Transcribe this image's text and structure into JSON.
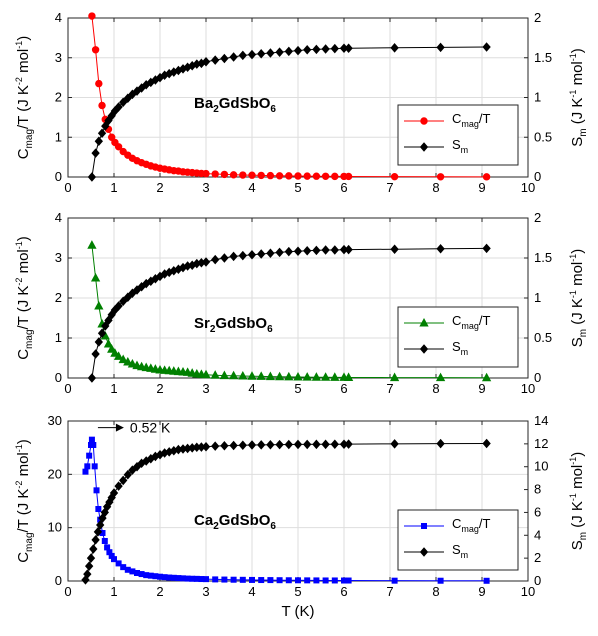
{
  "chart_data": [
    {
      "type": "line",
      "compound": {
        "pre": "Ba",
        "n1": "2",
        "mid": "GdSbO",
        "n2": "6"
      },
      "xlim": [
        0,
        10
      ],
      "xticks": [
        0,
        1,
        2,
        3,
        4,
        5,
        6,
        7,
        8,
        9,
        10
      ],
      "ylim_left": [
        0,
        4
      ],
      "yticks_left": [
        0,
        1,
        2,
        3,
        4
      ],
      "ylim_right": [
        0,
        2
      ],
      "yticks_right": [
        0,
        0.5,
        1,
        1.5,
        2
      ],
      "ylabel_left": {
        "a": "C",
        "b": "mag",
        "c": "/T (J K",
        "d": "-2",
        "e": " mol",
        "f": "-1",
        "g": ")"
      },
      "ylabel_right": {
        "a": "S",
        "b": "m",
        "c": " (J K",
        "d": "-1",
        "e": " mol",
        "f": "-1",
        "g": ")"
      },
      "grid": true,
      "legend_position": "right-middle",
      "series": [
        {
          "name_main": "C",
          "name_sub": "mag",
          "name_tail": "/T",
          "axis": "left",
          "color": "#ff0000",
          "marker": "circle",
          "x": [
            0.52,
            0.6,
            0.67,
            0.74,
            0.81,
            0.88,
            0.95,
            1.02,
            1.1,
            1.2,
            1.3,
            1.4,
            1.5,
            1.6,
            1.7,
            1.8,
            1.9,
            2.0,
            2.1,
            2.2,
            2.3,
            2.4,
            2.5,
            2.6,
            2.7,
            2.8,
            2.9,
            3.0,
            3.2,
            3.4,
            3.6,
            3.8,
            4.0,
            4.2,
            4.4,
            4.6,
            4.8,
            5.0,
            5.2,
            5.4,
            5.6,
            5.8,
            6.0,
            6.1,
            7.1,
            8.1,
            9.1
          ],
          "y": [
            4.05,
            3.2,
            2.35,
            1.8,
            1.45,
            1.2,
            1.0,
            0.87,
            0.76,
            0.64,
            0.55,
            0.47,
            0.41,
            0.36,
            0.32,
            0.28,
            0.25,
            0.22,
            0.2,
            0.18,
            0.16,
            0.15,
            0.13,
            0.12,
            0.11,
            0.1,
            0.09,
            0.085,
            0.075,
            0.065,
            0.055,
            0.05,
            0.045,
            0.04,
            0.035,
            0.03,
            0.028,
            0.025,
            0.022,
            0.02,
            0.018,
            0.016,
            0.015,
            0.014,
            0.008,
            0.005,
            0.004
          ]
        },
        {
          "name_main": "S",
          "name_sub": "m",
          "name_tail": "",
          "axis": "right",
          "color": "#000000",
          "marker": "diamond",
          "x": [
            0.52,
            0.6,
            0.67,
            0.74,
            0.81,
            0.88,
            0.95,
            1.02,
            1.1,
            1.2,
            1.3,
            1.4,
            1.5,
            1.6,
            1.7,
            1.8,
            1.9,
            2.0,
            2.1,
            2.2,
            2.3,
            2.4,
            2.5,
            2.6,
            2.7,
            2.8,
            2.9,
            3.0,
            3.2,
            3.4,
            3.6,
            3.8,
            4.0,
            4.2,
            4.4,
            4.6,
            4.8,
            5.0,
            5.2,
            5.4,
            5.6,
            5.8,
            6.0,
            6.1,
            7.1,
            8.1,
            9.1
          ],
          "y": [
            0.0,
            0.3,
            0.45,
            0.55,
            0.64,
            0.71,
            0.77,
            0.83,
            0.88,
            0.94,
            0.99,
            1.04,
            1.08,
            1.12,
            1.16,
            1.19,
            1.22,
            1.25,
            1.28,
            1.3,
            1.32,
            1.34,
            1.36,
            1.38,
            1.4,
            1.42,
            1.43,
            1.45,
            1.47,
            1.49,
            1.51,
            1.53,
            1.54,
            1.55,
            1.56,
            1.57,
            1.58,
            1.59,
            1.6,
            1.605,
            1.61,
            1.615,
            1.62,
            1.62,
            1.625,
            1.63,
            1.635
          ]
        }
      ]
    },
    {
      "type": "line",
      "compound": {
        "pre": "Sr",
        "n1": "2",
        "mid": "GdSbO",
        "n2": "6"
      },
      "xlim": [
        0,
        10
      ],
      "xticks": [
        0,
        1,
        2,
        3,
        4,
        5,
        6,
        7,
        8,
        9,
        10
      ],
      "ylim_left": [
        0,
        4
      ],
      "yticks_left": [
        0,
        1,
        2,
        3,
        4
      ],
      "ylim_right": [
        0,
        2
      ],
      "yticks_right": [
        0,
        0.5,
        1,
        1.5,
        2
      ],
      "ylabel_left": {
        "a": "C",
        "b": "mag",
        "c": "/T (J K",
        "d": "-2",
        "e": " mol",
        "f": "-1",
        "g": ")"
      },
      "ylabel_right": {
        "a": "S",
        "b": "m",
        "c": " (J K",
        "d": "-1",
        "e": " mol",
        "f": "-1",
        "g": ")"
      },
      "grid": true,
      "legend_position": "bottom-right",
      "series": [
        {
          "name_main": "C",
          "name_sub": "mag",
          "name_tail": "/T",
          "axis": "left",
          "color": "#008000",
          "marker": "triangle",
          "x": [
            0.52,
            0.6,
            0.67,
            0.74,
            0.81,
            0.88,
            0.95,
            1.02,
            1.1,
            1.2,
            1.3,
            1.4,
            1.5,
            1.6,
            1.7,
            1.8,
            1.9,
            2.0,
            2.1,
            2.2,
            2.3,
            2.4,
            2.5,
            2.6,
            2.7,
            2.8,
            2.9,
            3.0,
            3.2,
            3.4,
            3.6,
            3.8,
            4.0,
            4.2,
            4.4,
            4.6,
            4.8,
            5.0,
            5.2,
            5.4,
            5.6,
            5.8,
            6.0,
            6.1,
            7.1,
            8.1,
            9.1
          ],
          "y": [
            3.32,
            2.5,
            1.8,
            1.35,
            1.05,
            0.85,
            0.72,
            0.62,
            0.54,
            0.46,
            0.4,
            0.35,
            0.31,
            0.28,
            0.26,
            0.24,
            0.22,
            0.2,
            0.19,
            0.18,
            0.17,
            0.16,
            0.15,
            0.14,
            0.12,
            0.1,
            0.09,
            0.08,
            0.07,
            0.06,
            0.055,
            0.05,
            0.045,
            0.04,
            0.035,
            0.03,
            0.028,
            0.025,
            0.022,
            0.02,
            0.018,
            0.016,
            0.015,
            0.014,
            0.01,
            0.008,
            0.006
          ]
        },
        {
          "name_main": "S",
          "name_sub": "m",
          "name_tail": "",
          "axis": "right",
          "color": "#000000",
          "marker": "diamond",
          "x": [
            0.52,
            0.6,
            0.67,
            0.74,
            0.81,
            0.88,
            0.95,
            1.02,
            1.1,
            1.2,
            1.3,
            1.4,
            1.5,
            1.6,
            1.7,
            1.8,
            1.9,
            2.0,
            2.1,
            2.2,
            2.3,
            2.4,
            2.5,
            2.6,
            2.7,
            2.8,
            2.9,
            3.0,
            3.2,
            3.4,
            3.6,
            3.8,
            4.0,
            4.2,
            4.4,
            4.6,
            4.8,
            5.0,
            5.2,
            5.4,
            5.6,
            5.8,
            6.0,
            6.1,
            7.1,
            8.1,
            9.1
          ],
          "y": [
            0.0,
            0.3,
            0.45,
            0.56,
            0.65,
            0.72,
            0.79,
            0.85,
            0.9,
            0.96,
            1.01,
            1.06,
            1.1,
            1.14,
            1.18,
            1.21,
            1.24,
            1.27,
            1.3,
            1.32,
            1.34,
            1.36,
            1.38,
            1.4,
            1.41,
            1.43,
            1.44,
            1.45,
            1.48,
            1.5,
            1.52,
            1.53,
            1.54,
            1.55,
            1.56,
            1.57,
            1.58,
            1.585,
            1.59,
            1.595,
            1.6,
            1.6,
            1.605,
            1.605,
            1.61,
            1.615,
            1.62
          ]
        }
      ]
    },
    {
      "type": "line",
      "compound": {
        "pre": "Ca",
        "n1": "2",
        "mid": "GdSbO",
        "n2": "6"
      },
      "xlim": [
        0,
        10
      ],
      "xticks": [
        0,
        1,
        2,
        3,
        4,
        5,
        6,
        7,
        8,
        9,
        10
      ],
      "ylim_left": [
        0,
        30
      ],
      "yticks_left": [
        0,
        10,
        20,
        30
      ],
      "ylim_right": [
        0,
        14
      ],
      "yticks_right": [
        0,
        2,
        4,
        6,
        8,
        10,
        12,
        14
      ],
      "ylabel_left": {
        "a": "C",
        "b": "mag",
        "c": "/T (J K",
        "d": "-2",
        "e": " mol",
        "f": "-1",
        "g": ")"
      },
      "ylabel_right": {
        "a": "S",
        "b": "m",
        "c": " (J K",
        "d": "-1",
        "e": " mol",
        "f": "-1",
        "g": ")"
      },
      "xlabel": "T (K)",
      "grid": true,
      "legend_position": "bottom-right",
      "annotation": {
        "text": "0.52 K",
        "x": 0.52,
        "y": 26.5
      },
      "series": [
        {
          "name_main": "C",
          "name_sub": "mag",
          "name_tail": "/T",
          "axis": "left",
          "color": "#0000ff",
          "marker": "square",
          "x": [
            0.38,
            0.42,
            0.46,
            0.5,
            0.52,
            0.55,
            0.58,
            0.62,
            0.66,
            0.7,
            0.75,
            0.8,
            0.85,
            0.9,
            0.95,
            1.0,
            1.1,
            1.2,
            1.3,
            1.4,
            1.5,
            1.6,
            1.7,
            1.8,
            1.9,
            2.0,
            2.1,
            2.2,
            2.3,
            2.4,
            2.5,
            2.6,
            2.7,
            2.8,
            2.9,
            3.0,
            3.2,
            3.4,
            3.6,
            3.8,
            4.0,
            4.2,
            4.4,
            4.6,
            4.8,
            5.0,
            5.2,
            5.4,
            5.6,
            5.8,
            6.0,
            6.1,
            7.1,
            8.1,
            9.1
          ],
          "y": [
            20.5,
            21.5,
            23.5,
            25.5,
            26.5,
            25.5,
            21.5,
            17.0,
            13.5,
            11.5,
            9.0,
            7.5,
            6.3,
            5.4,
            4.7,
            4.1,
            3.3,
            2.6,
            2.1,
            1.8,
            1.5,
            1.3,
            1.1,
            1.0,
            0.9,
            0.8,
            0.72,
            0.65,
            0.6,
            0.55,
            0.5,
            0.45,
            0.42,
            0.4,
            0.37,
            0.35,
            0.3,
            0.27,
            0.24,
            0.22,
            0.2,
            0.18,
            0.17,
            0.15,
            0.14,
            0.13,
            0.12,
            0.11,
            0.1,
            0.1,
            0.09,
            0.09,
            0.06,
            0.05,
            0.04
          ]
        },
        {
          "name_main": "S",
          "name_sub": "m",
          "name_tail": "",
          "axis": "right",
          "color": "#000000",
          "marker": "diamond",
          "x": [
            0.38,
            0.42,
            0.46,
            0.5,
            0.55,
            0.6,
            0.65,
            0.7,
            0.75,
            0.8,
            0.85,
            0.9,
            0.95,
            1.0,
            1.1,
            1.2,
            1.3,
            1.4,
            1.5,
            1.6,
            1.7,
            1.8,
            1.9,
            2.0,
            2.1,
            2.2,
            2.3,
            2.4,
            2.5,
            2.6,
            2.7,
            2.8,
            2.9,
            3.0,
            3.2,
            3.4,
            3.6,
            3.8,
            4.0,
            4.2,
            4.4,
            4.6,
            4.8,
            5.0,
            5.2,
            5.4,
            5.6,
            5.8,
            6.0,
            6.1,
            7.1,
            8.1,
            9.1
          ],
          "y": [
            0.1,
            0.6,
            1.3,
            2.0,
            2.8,
            3.6,
            4.3,
            4.9,
            5.5,
            6.0,
            6.5,
            6.9,
            7.3,
            7.7,
            8.3,
            8.8,
            9.3,
            9.7,
            10.0,
            10.3,
            10.5,
            10.7,
            10.9,
            11.05,
            11.2,
            11.3,
            11.4,
            11.5,
            11.55,
            11.6,
            11.65,
            11.7,
            11.72,
            11.75,
            11.8,
            11.83,
            11.86,
            11.88,
            11.9,
            11.91,
            11.92,
            11.93,
            11.94,
            11.95,
            11.95,
            11.96,
            11.96,
            11.97,
            11.97,
            11.98,
            12.0,
            12.02,
            12.03
          ]
        }
      ]
    }
  ]
}
